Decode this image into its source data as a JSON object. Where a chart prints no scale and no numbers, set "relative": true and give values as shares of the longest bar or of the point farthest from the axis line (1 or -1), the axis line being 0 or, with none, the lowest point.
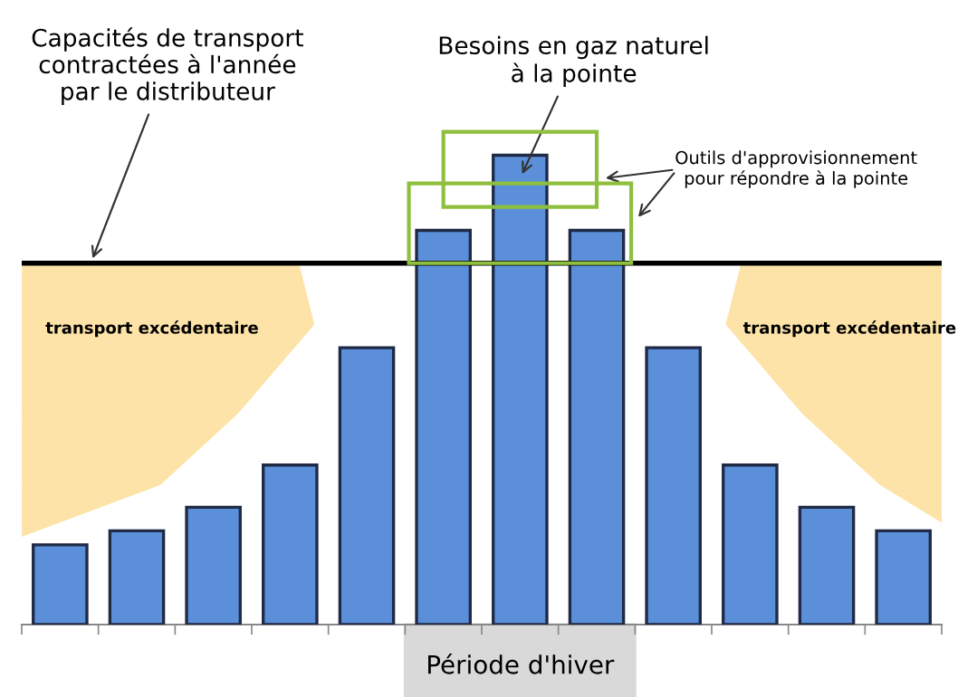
{
  "chart_data": {
    "type": "bar",
    "relative": true,
    "categories": [
      null,
      null,
      null,
      null,
      null,
      null,
      null,
      null,
      null,
      null,
      null,
      null
    ],
    "values": [
      0.17,
      0.2,
      0.25,
      0.34,
      0.59,
      0.84,
      1,
      0.84,
      0.59,
      0.34,
      0.25,
      0.2
    ],
    "color": "#5b8fd9",
    "ref_lines": [
      {
        "axis": "y",
        "value": 0.77,
        "label": "Capacités de transport\ncontractées à l'année\npar le distributeur",
        "color": "#000000"
      }
    ],
    "annotations": [
      "Besoins en gaz naturel\nà la pointe",
      "Outils d'approvisionnement\npour répondre à la pointe",
      "transport excédentaire",
      "transport excédentaire",
      "Période d'hiver"
    ],
    "grid": false
  }
}
